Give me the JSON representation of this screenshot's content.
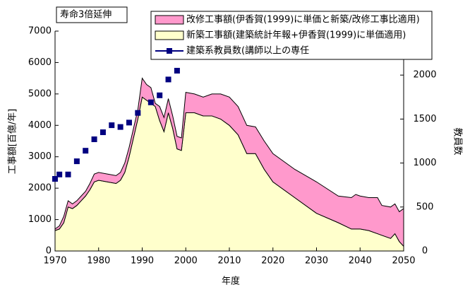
{
  "chart_data": {
    "type": "stacked_area",
    "annotation": "寿命3倍延伸",
    "x_label": "年度",
    "y_label": "工事額[百億/年]",
    "y2_label": "教員数",
    "x": [
      1970,
      1971,
      1972,
      1973,
      1974,
      1975,
      1976,
      1977,
      1978,
      1979,
      1980,
      1982,
      1984,
      1985,
      1986,
      1987,
      1988,
      1989,
      1990,
      1991,
      1992,
      1993,
      1994,
      1995,
      1996,
      1997,
      1998,
      1999,
      2000,
      2002,
      2004,
      2006,
      2008,
      2010,
      2012,
      2014,
      2016,
      2018,
      2020,
      2025,
      2030,
      2035,
      2038,
      2039,
      2040,
      2042,
      2044,
      2045,
      2047,
      2048,
      2049,
      2050
    ],
    "series": [
      {
        "name": "新築工事額(建築統計年報+伊香賀(1999)に単価適用)",
        "color": "#ffffcc",
        "values": [
          650,
          700,
          900,
          1400,
          1350,
          1450,
          1600,
          1750,
          1950,
          2200,
          2250,
          2200,
          2150,
          2250,
          2500,
          3000,
          3600,
          4200,
          4900,
          4800,
          4700,
          4600,
          4150,
          3800,
          4400,
          3900,
          3250,
          3200,
          4400,
          4400,
          4300,
          4300,
          4200,
          4000,
          3700,
          3100,
          3100,
          2600,
          2200,
          1700,
          1200,
          900,
          700,
          700,
          700,
          650,
          550,
          500,
          400,
          550,
          300,
          150
        ]
      },
      {
        "name": "改修工事額(伊香賀(1999)に単価と新築/改修工事比適用)",
        "color": "#ff99cc",
        "values": [
          50,
          100,
          200,
          200,
          150,
          150,
          150,
          150,
          200,
          250,
          250,
          250,
          250,
          250,
          300,
          300,
          300,
          300,
          600,
          500,
          500,
          100,
          450,
          450,
          450,
          400,
          400,
          400,
          650,
          600,
          600,
          700,
          800,
          900,
          900,
          900,
          850,
          900,
          900,
          900,
          1000,
          850,
          1000,
          1100,
          1050,
          1050,
          1150,
          950,
          1000,
          950,
          950,
          1200
        ]
      },
      {
        "name": "建築系教員数(講師以上の専任",
        "color": "#000080",
        "axis": "y2",
        "x": [
          1970,
          1971,
          1973,
          1975,
          1977,
          1979,
          1981,
          1983,
          1985,
          1987,
          1989,
          1992,
          1994,
          1996,
          1998
        ],
        "values": [
          820,
          870,
          870,
          1020,
          1140,
          1270,
          1350,
          1430,
          1410,
          1460,
          1570,
          1690,
          1770,
          1950,
          2050
        ]
      }
    ],
    "xlim": [
      1970,
      2050
    ],
    "xticks": [
      1970,
      1980,
      1990,
      2000,
      2010,
      2020,
      2030,
      2040,
      2050
    ],
    "ylim": [
      0,
      7000
    ],
    "yticks": [
      0,
      1000,
      2000,
      3000,
      4000,
      5000,
      6000,
      7000
    ],
    "y2lim": [
      0,
      2500
    ],
    "y2ticks": [
      0,
      500,
      1000,
      1500,
      2000
    ]
  }
}
